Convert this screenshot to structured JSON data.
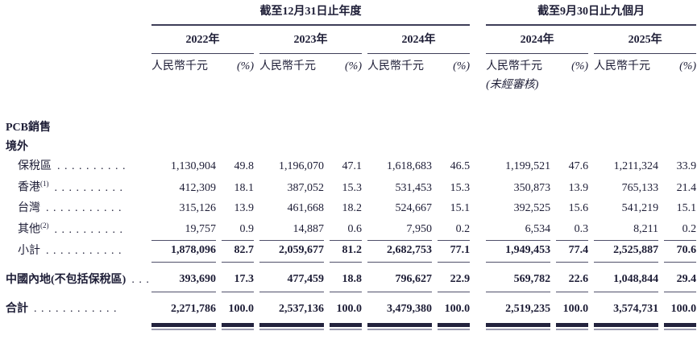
{
  "page": {
    "background": "#ffffff",
    "text_color": "#1d1d36",
    "accent_rule_color": "#3e3e58"
  },
  "table": {
    "section_headers": [
      {
        "label": "截至12月31日止年度"
      },
      {
        "label": "截至9月30日止九個月"
      }
    ],
    "year_columns": [
      {
        "year": "2022年",
        "unit": "人民幣千元",
        "pct_label": "(%)",
        "note": ""
      },
      {
        "year": "2023年",
        "unit": "人民幣千元",
        "pct_label": "(%)",
        "note": ""
      },
      {
        "year": "2024年",
        "unit": "人民幣千元",
        "pct_label": "(%)",
        "note": ""
      },
      {
        "year": "2024年",
        "unit": "人民幣千元",
        "pct_label": "(%)",
        "note": "(未經審核)"
      },
      {
        "year": "2025年",
        "unit": "人民幣千元",
        "pct_label": "(%)",
        "note": ""
      }
    ],
    "section_rows": [
      {
        "label": "PCB銷售"
      },
      {
        "label": "境外"
      }
    ],
    "rows": [
      {
        "label": "保稅區",
        "sup": "",
        "dots": ". . . . . . . . . .",
        "values": [
          "1,130,904",
          "49.8",
          "1,196,070",
          "47.1",
          "1,618,683",
          "46.5",
          "1,199,521",
          "47.6",
          "1,211,324",
          "33.9"
        ]
      },
      {
        "label": "香港",
        "sup": "(1)",
        "dots": ". . . . . . . . . .",
        "values": [
          "412,309",
          "18.1",
          "387,052",
          "15.3",
          "531,453",
          "15.3",
          "350,873",
          "13.9",
          "765,133",
          "21.4"
        ]
      },
      {
        "label": "台灣",
        "sup": "",
        "dots": ". . . . . . . . . . .",
        "values": [
          "315,126",
          "13.9",
          "461,668",
          "18.2",
          "524,667",
          "15.1",
          "392,525",
          "15.6",
          "541,219",
          "15.1"
        ]
      },
      {
        "label": "其他",
        "sup": "(2)",
        "dots": ". . . . . . . . . .",
        "values": [
          "19,757",
          "0.9",
          "14,887",
          "0.6",
          "7,950",
          "0.2",
          "6,534",
          "0.3",
          "8,211",
          "0.2"
        ]
      },
      {
        "label": "小計",
        "sup": "",
        "dots": ". . . . . . . . . . .",
        "values": [
          "1,878,096",
          "82.7",
          "2,059,677",
          "81.2",
          "2,682,753",
          "77.1",
          "1,949,453",
          "77.4",
          "2,525,887",
          "70.6"
        ]
      },
      {
        "label": "中國內地(不包括保稅區)",
        "sup": "",
        "dots": ". . .",
        "values": [
          "393,690",
          "17.3",
          "477,459",
          "18.8",
          "796,627",
          "22.9",
          "569,782",
          "22.6",
          "1,048,844",
          "29.4"
        ]
      },
      {
        "label": "合計",
        "sup": "",
        "dots": ". . . . . . . . . . . .",
        "values": [
          "2,271,786",
          "100.0",
          "2,537,136",
          "100.0",
          "3,479,380",
          "100.0",
          "2,519,235",
          "100.0",
          "3,574,731",
          "100.0"
        ]
      }
    ]
  }
}
